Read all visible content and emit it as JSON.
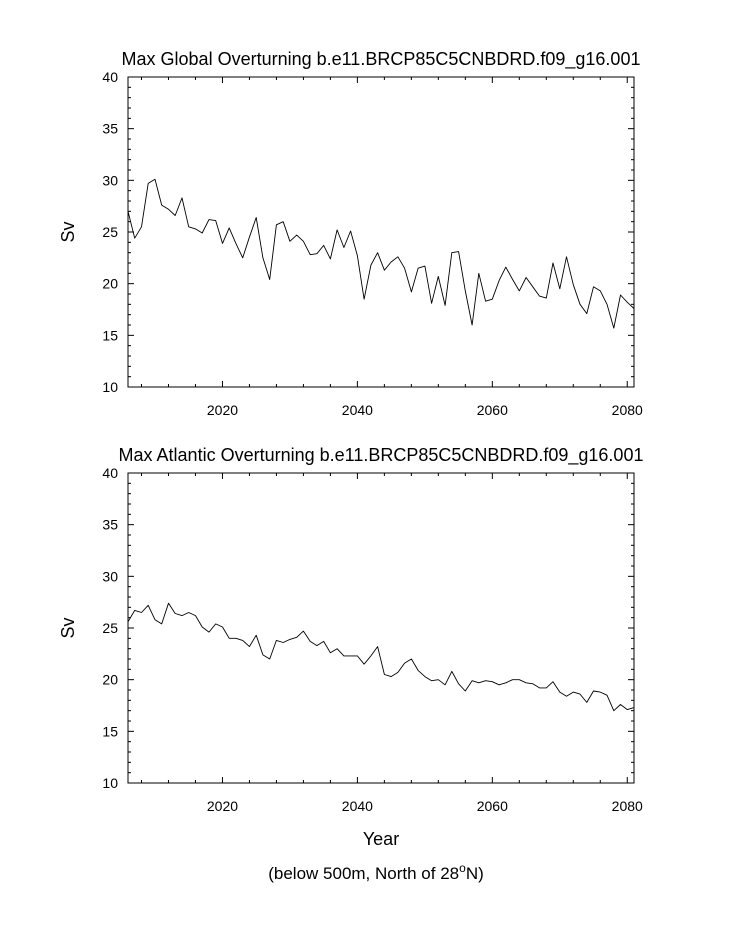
{
  "footnote": {
    "prefix": "(below 500m, North of 28",
    "sup": "o",
    "suffix": "N)"
  },
  "chart_data": [
    {
      "type": "line",
      "title": "Max Global Overturning b.e11.BRCP85C5CNBDRD.f09_g16.001",
      "xlabel": "",
      "ylabel": "Sv",
      "xlim": [
        2006,
        2081
      ],
      "ylim": [
        10,
        40
      ],
      "xticks": [
        2020,
        2040,
        2060,
        2080
      ],
      "yticks": [
        10,
        15,
        20,
        25,
        30,
        35,
        40
      ],
      "grid": false,
      "series": [
        {
          "x": [
            2006,
            2007,
            2008,
            2009,
            2010,
            2011,
            2012,
            2013,
            2014,
            2015,
            2016,
            2017,
            2018,
            2019,
            2020,
            2021,
            2022,
            2023,
            2024,
            2025,
            2026,
            2027,
            2028,
            2029,
            2030,
            2031,
            2032,
            2033,
            2034,
            2035,
            2036,
            2037,
            2038,
            2039,
            2040,
            2041,
            2042,
            2043,
            2044,
            2045,
            2046,
            2047,
            2048,
            2049,
            2050,
            2051,
            2052,
            2053,
            2054,
            2055,
            2056,
            2057,
            2058,
            2059,
            2060,
            2061,
            2062,
            2063,
            2064,
            2065,
            2066,
            2067,
            2068,
            2069,
            2070,
            2071,
            2072,
            2073,
            2074,
            2075,
            2076,
            2077,
            2078,
            2079,
            2080,
            2081
          ],
          "y": [
            27.0,
            24.4,
            25.5,
            29.7,
            30.1,
            27.6,
            27.2,
            26.6,
            28.3,
            25.5,
            25.3,
            24.9,
            26.2,
            26.1,
            23.9,
            25.4,
            23.9,
            22.5,
            24.5,
            26.4,
            22.5,
            20.4,
            25.7,
            26.0,
            24.1,
            24.7,
            24.1,
            22.8,
            22.9,
            23.7,
            22.4,
            25.2,
            23.5,
            25.1,
            22.7,
            18.5,
            21.8,
            23.0,
            21.3,
            22.1,
            22.6,
            21.5,
            19.2,
            21.5,
            21.7,
            18.1,
            20.7,
            17.9,
            23.0,
            23.1,
            19.3,
            16.0,
            21.0,
            18.3,
            18.5,
            20.3,
            21.6,
            20.4,
            19.3,
            20.6,
            19.7,
            18.8,
            18.6,
            22.0,
            19.5,
            22.6,
            19.9,
            18.0,
            17.1,
            19.7,
            19.3,
            18.0,
            15.7,
            18.9,
            18.2,
            17.6
          ]
        }
      ]
    },
    {
      "type": "line",
      "title": "Max Atlantic Overturning b.e11.BRCP85C5CNBDRD.f09_g16.001",
      "xlabel": "Year",
      "ylabel": "Sv",
      "xlim": [
        2006,
        2081
      ],
      "ylim": [
        10,
        40
      ],
      "xticks": [
        2020,
        2040,
        2060,
        2080
      ],
      "yticks": [
        10,
        15,
        20,
        25,
        30,
        35,
        40
      ],
      "grid": false,
      "series": [
        {
          "x": [
            2006,
            2007,
            2008,
            2009,
            2010,
            2011,
            2012,
            2013,
            2014,
            2015,
            2016,
            2017,
            2018,
            2019,
            2020,
            2021,
            2022,
            2023,
            2024,
            2025,
            2026,
            2027,
            2028,
            2029,
            2030,
            2031,
            2032,
            2033,
            2034,
            2035,
            2036,
            2037,
            2038,
            2039,
            2040,
            2041,
            2042,
            2043,
            2044,
            2045,
            2046,
            2047,
            2048,
            2049,
            2050,
            2051,
            2052,
            2053,
            2054,
            2055,
            2056,
            2057,
            2058,
            2059,
            2060,
            2061,
            2062,
            2063,
            2064,
            2065,
            2066,
            2067,
            2068,
            2069,
            2070,
            2071,
            2072,
            2073,
            2074,
            2075,
            2076,
            2077,
            2078,
            2079,
            2080,
            2081
          ],
          "y": [
            25.6,
            26.7,
            26.5,
            27.2,
            25.8,
            25.4,
            27.4,
            26.4,
            26.2,
            26.5,
            26.2,
            25.1,
            24.6,
            25.4,
            25.1,
            24.0,
            24.0,
            23.8,
            23.2,
            24.3,
            22.4,
            22.0,
            23.8,
            23.6,
            23.9,
            24.1,
            24.7,
            23.7,
            23.3,
            23.7,
            22.6,
            23.0,
            22.3,
            22.3,
            22.3,
            21.5,
            22.3,
            23.2,
            20.5,
            20.3,
            20.7,
            21.6,
            22.0,
            20.9,
            20.3,
            19.9,
            20.0,
            19.5,
            20.8,
            19.6,
            18.9,
            19.9,
            19.7,
            19.9,
            19.8,
            19.5,
            19.7,
            20.0,
            20.0,
            19.7,
            19.6,
            19.2,
            19.2,
            19.8,
            18.8,
            18.4,
            18.8,
            18.6,
            17.8,
            18.9,
            18.8,
            18.5,
            17.0,
            17.6,
            17.1,
            17.3
          ]
        }
      ]
    }
  ]
}
